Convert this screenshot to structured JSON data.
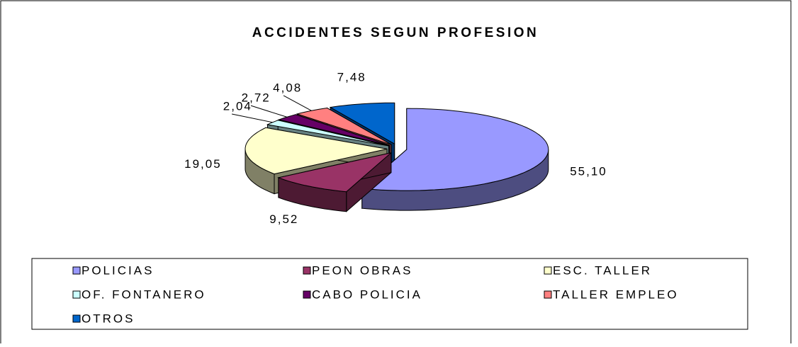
{
  "chart_data": {
    "type": "pie",
    "title": "ACCIDENTES SEGUN PROFESION",
    "categories": [
      "POLICIAS",
      "PEON OBRAS",
      "ESC. TALLER",
      "OF. FONTANERO",
      "CABO POLICIA",
      "TALLER EMPLEO",
      "OTROS"
    ],
    "values": [
      55.1,
      9.52,
      19.05,
      2.04,
      2.72,
      4.08,
      7.48
    ],
    "value_labels": [
      "55,10",
      "9,52",
      "19,05",
      "2,04",
      "2,72",
      "4,08",
      "7,48"
    ],
    "colors": [
      "#9999ff",
      "#993366",
      "#ffffcc",
      "#ccffff",
      "#660066",
      "#ff8080",
      "#0066cc"
    ],
    "legend": "bottom"
  }
}
